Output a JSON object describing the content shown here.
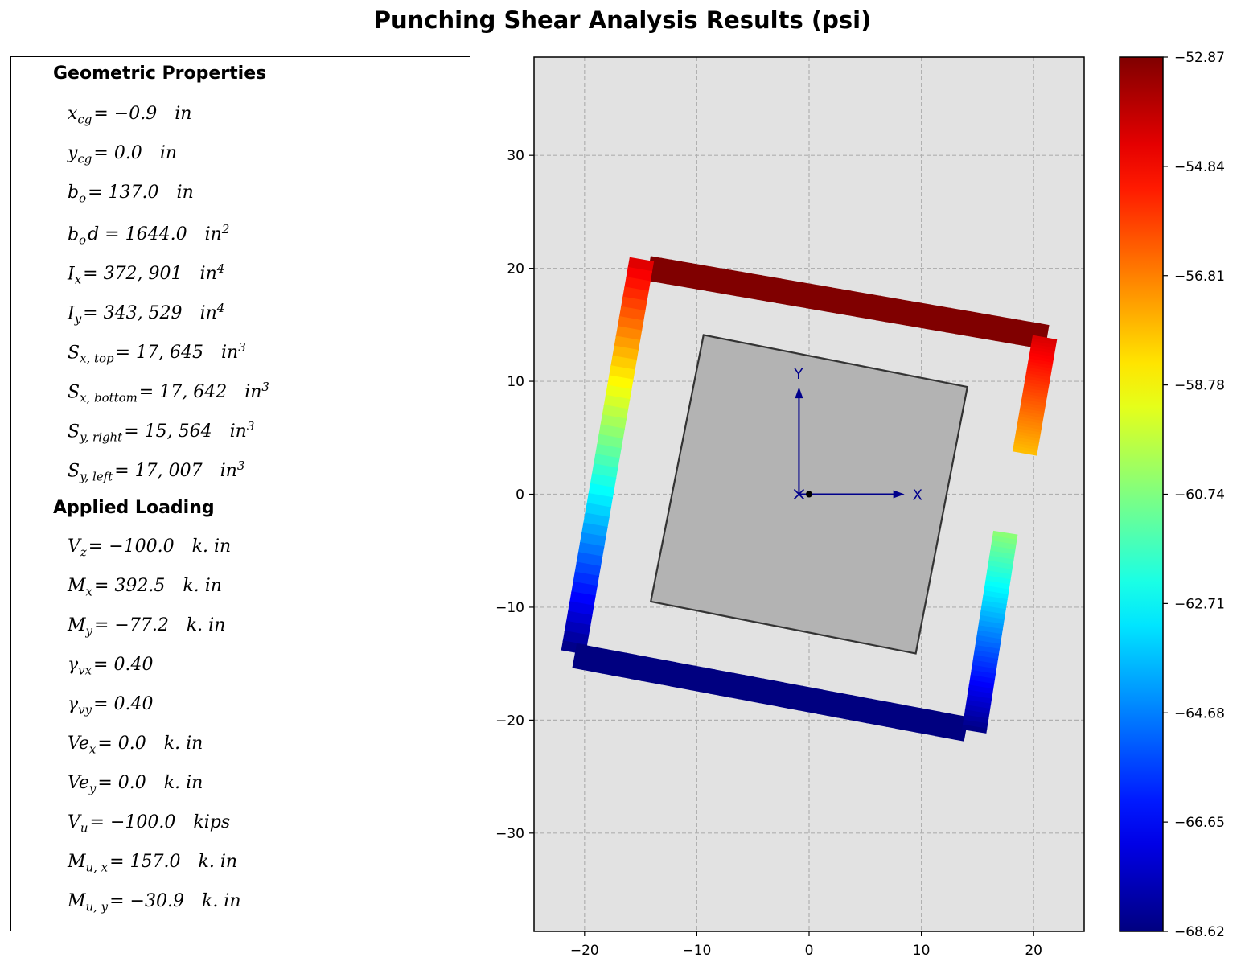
{
  "title": "Punching Shear Analysis Results (psi)",
  "panel": {
    "geometric_heading": "Geometric Properties",
    "geometric": [
      {
        "sym": "x",
        "sub": "cg",
        "val": "= −0.9",
        "unit": "in",
        "unit_sup": ""
      },
      {
        "sym": "y",
        "sub": "cg",
        "val": "= 0.0",
        "unit": "in",
        "unit_sup": ""
      },
      {
        "sym": "b",
        "sub": "o",
        "val": "= 137.0",
        "unit": "in",
        "unit_sup": ""
      },
      {
        "sym": "b",
        "sub": "o",
        "val": "d = 1644.0",
        "unit": "in",
        "unit_sup": "2"
      },
      {
        "sym": "I",
        "sub": "x",
        "val": "= 372, 901",
        "unit": "in",
        "unit_sup": "4"
      },
      {
        "sym": "I",
        "sub": "y",
        "val": "= 343, 529",
        "unit": "in",
        "unit_sup": "4"
      },
      {
        "sym": "S",
        "sub": "x, top",
        "val": "= 17, 645",
        "unit": "in",
        "unit_sup": "3"
      },
      {
        "sym": "S",
        "sub": "x, bottom",
        "val": "= 17, 642",
        "unit": "in",
        "unit_sup": "3"
      },
      {
        "sym": "S",
        "sub": "y, right",
        "val": "= 15, 564",
        "unit": "in",
        "unit_sup": "3"
      },
      {
        "sym": "S",
        "sub": "y, left",
        "val": "= 17, 007",
        "unit": "in",
        "unit_sup": "3"
      }
    ],
    "loading_heading": "Applied Loading",
    "loading": [
      {
        "sym": "V",
        "sub": "z",
        "val": "= −100.0",
        "unit": "k. in",
        "unit_sup": ""
      },
      {
        "sym": "M",
        "sub": "x",
        "val": "= 392.5",
        "unit": "k. in",
        "unit_sup": ""
      },
      {
        "sym": "M",
        "sub": "y",
        "val": "= −77.2",
        "unit": "k. in",
        "unit_sup": ""
      },
      {
        "sym": "γ",
        "sub": "vx",
        "val": "= 0.40",
        "unit": "",
        "unit_sup": ""
      },
      {
        "sym": "γ",
        "sub": "vy",
        "val": "= 0.40",
        "unit": "",
        "unit_sup": ""
      },
      {
        "sym": "Ve",
        "sub": "x",
        "val": "= 0.0",
        "unit": "k. in",
        "unit_sup": ""
      },
      {
        "sym": "Ve",
        "sub": "y",
        "val": "= 0.0",
        "unit": "k. in",
        "unit_sup": ""
      },
      {
        "sym": "V",
        "sub": "u",
        "val": "= −100.0",
        "unit": "kips",
        "unit_sup": ""
      },
      {
        "sym": "M",
        "sub": "u, x",
        "val": "= 157.0",
        "unit": "k. in",
        "unit_sup": ""
      },
      {
        "sym": "M",
        "sub": "u, y",
        "val": "= −30.9",
        "unit": "k. in",
        "unit_sup": ""
      }
    ]
  },
  "chart_data": {
    "type": "heatmap",
    "title": "Punching Shear Analysis Results (psi)",
    "xlabel": "",
    "ylabel": "",
    "xlim": [
      -24.5,
      24.5
    ],
    "ylim": [
      -38.7,
      38.7
    ],
    "xticks": [
      -20,
      -10,
      0,
      10,
      20
    ],
    "yticks": [
      -30,
      -20,
      -10,
      0,
      10,
      20,
      30
    ],
    "grid": true,
    "background_color": "#e2e2e2",
    "column": {
      "polygon": [
        [
          -9.4,
          14.1
        ],
        [
          14.1,
          9.5
        ],
        [
          9.5,
          -14.1
        ],
        [
          -14.1,
          -9.5
        ]
      ],
      "fill": "#b3b3b3",
      "edge": "#333333"
    },
    "axes_arrows": {
      "origin": [
        -0.9,
        0.0
      ],
      "x_end": [
        8.5,
        0.0
      ],
      "y_end": [
        -0.9,
        9.5
      ],
      "x_label": "X",
      "y_label": "Y",
      "cg_marker": [
        0.0,
        0.0
      ],
      "color": "#00008b"
    },
    "perimeter_segments": [
      {
        "name": "top",
        "from": [
          -14.3,
          20.0
        ],
        "to": [
          21.2,
          13.9
        ],
        "stress_from": -52.87,
        "stress_to": -52.87
      },
      {
        "name": "left",
        "from": [
          -14.9,
          20.8
        ],
        "to": [
          -21.0,
          -14.0
        ],
        "stress_from": -54.2,
        "stress_to": -68.62
      },
      {
        "name": "bottom",
        "from": [
          -20.9,
          -14.3
        ],
        "to": [
          14.0,
          -20.8
        ],
        "stress_from": -68.62,
        "stress_to": -68.62
      },
      {
        "name": "right-upper",
        "from": [
          21.0,
          13.9
        ],
        "to": [
          19.2,
          3.6
        ],
        "stress_from": -54.2,
        "stress_to": -57.8
      },
      {
        "name": "right-lower",
        "from": [
          17.5,
          -3.4
        ],
        "to": [
          14.7,
          -21.0
        ],
        "stress_from": -60.5,
        "stress_to": -68.62
      }
    ],
    "segment_width": 2.2,
    "colorbar": {
      "colormap": "jet",
      "min": -68.62,
      "max": -52.87,
      "tick_labels": [
        "−52.87",
        "−54.84",
        "−56.81",
        "−58.78",
        "−60.74",
        "−62.71",
        "−64.68",
        "−66.65",
        "−68.62"
      ]
    }
  }
}
